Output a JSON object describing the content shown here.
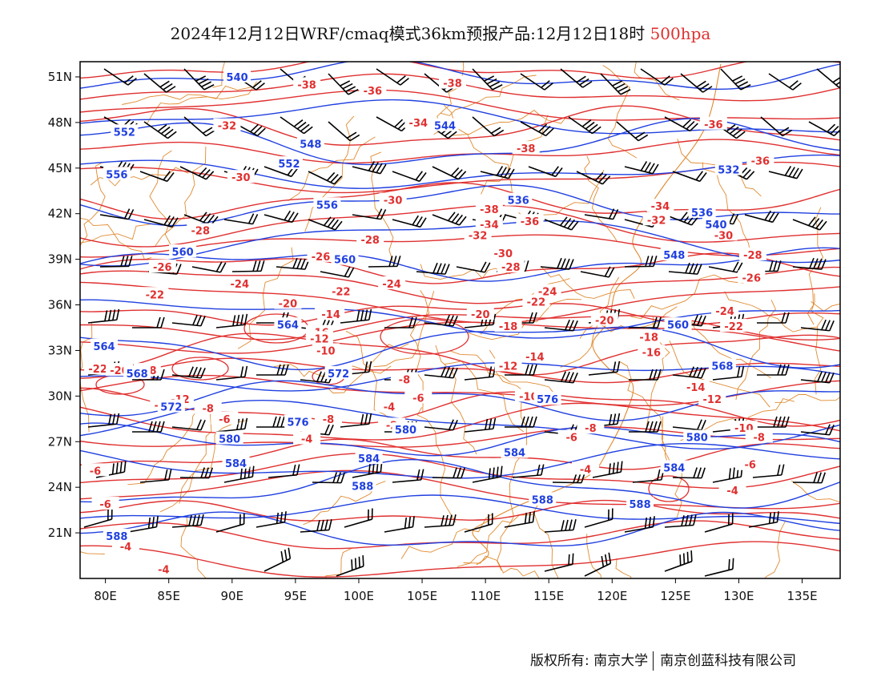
{
  "title": {
    "main": "2024年12月12日WRF/cmaq模式36km预报产品:12月12日18时",
    "level": "500hpa",
    "level_color": "#e03030"
  },
  "map": {
    "extent": {
      "lon": [
        78,
        138
      ],
      "lat": [
        18,
        52
      ]
    },
    "lon_ticks": [
      "80E",
      "85E",
      "90E",
      "95E",
      "100E",
      "105E",
      "110E",
      "115E",
      "120E",
      "125E",
      "130E",
      "135E"
    ],
    "lat_ticks": [
      "51N",
      "48N",
      "45N",
      "42N",
      "39N",
      "36N",
      "33N",
      "30N",
      "27N",
      "24N",
      "21N"
    ],
    "colors": {
      "height_contour": "#2040e0",
      "temperature_contour": "#e03030",
      "borders": "#e08a30",
      "wind_barb": "#000000"
    },
    "height_labels": [
      {
        "text": "540",
        "lon": 90.4,
        "lat": 51.0
      },
      {
        "text": "552",
        "lon": 81.5,
        "lat": 47.4
      },
      {
        "text": "548",
        "lon": 96.2,
        "lat": 46.6
      },
      {
        "text": "544",
        "lon": 106.8,
        "lat": 47.8
      },
      {
        "text": "556",
        "lon": 80.9,
        "lat": 44.6
      },
      {
        "text": "552",
        "lon": 94.5,
        "lat": 45.3
      },
      {
        "text": "536",
        "lon": 112.6,
        "lat": 42.9
      },
      {
        "text": "532",
        "lon": 129.2,
        "lat": 44.9
      },
      {
        "text": "536",
        "lon": 127.1,
        "lat": 42.1
      },
      {
        "text": "540",
        "lon": 128.2,
        "lat": 41.3
      },
      {
        "text": "556",
        "lon": 97.5,
        "lat": 42.6
      },
      {
        "text": "560",
        "lon": 86.1,
        "lat": 39.5
      },
      {
        "text": "560",
        "lon": 98.9,
        "lat": 39.0
      },
      {
        "text": "548",
        "lon": 124.9,
        "lat": 39.3
      },
      {
        "text": "564",
        "lon": 94.4,
        "lat": 34.7
      },
      {
        "text": "564",
        "lon": 79.9,
        "lat": 33.3
      },
      {
        "text": "560",
        "lon": 125.2,
        "lat": 34.7
      },
      {
        "text": "568",
        "lon": 128.7,
        "lat": 32.0
      },
      {
        "text": "568",
        "lon": 82.5,
        "lat": 31.5
      },
      {
        "text": "572",
        "lon": 98.4,
        "lat": 31.5
      },
      {
        "text": "572",
        "lon": 85.2,
        "lat": 29.3
      },
      {
        "text": "576",
        "lon": 95.2,
        "lat": 28.3
      },
      {
        "text": "576",
        "lon": 114.9,
        "lat": 29.8
      },
      {
        "text": "580",
        "lon": 89.8,
        "lat": 27.2
      },
      {
        "text": "580",
        "lon": 103.7,
        "lat": 27.8
      },
      {
        "text": "580",
        "lon": 126.7,
        "lat": 27.3
      },
      {
        "text": "584",
        "lon": 90.3,
        "lat": 25.6
      },
      {
        "text": "584",
        "lon": 100.8,
        "lat": 25.9
      },
      {
        "text": "584",
        "lon": 112.3,
        "lat": 26.3
      },
      {
        "text": "584",
        "lon": 124.9,
        "lat": 25.3
      },
      {
        "text": "588",
        "lon": 100.3,
        "lat": 24.1
      },
      {
        "text": "588",
        "lon": 114.5,
        "lat": 23.2
      },
      {
        "text": "588",
        "lon": 122.2,
        "lat": 22.9
      },
      {
        "text": "588",
        "lon": 80.9,
        "lat": 20.8
      }
    ],
    "temperature_labels": [
      {
        "text": "-38",
        "lon": 95.9,
        "lat": 50.5
      },
      {
        "text": "-36",
        "lon": 101.1,
        "lat": 50.1
      },
      {
        "text": "-38",
        "lon": 107.4,
        "lat": 50.6
      },
      {
        "text": "-32",
        "lon": 89.6,
        "lat": 47.8
      },
      {
        "text": "-34",
        "lon": 104.7,
        "lat": 48.0
      },
      {
        "text": "-36",
        "lon": 128.0,
        "lat": 47.9
      },
      {
        "text": "-38",
        "lon": 113.2,
        "lat": 46.3
      },
      {
        "text": "-36",
        "lon": 131.7,
        "lat": 45.5
      },
      {
        "text": "-30",
        "lon": 90.7,
        "lat": 44.4
      },
      {
        "text": "-30",
        "lon": 102.7,
        "lat": 42.9
      },
      {
        "text": "-38",
        "lon": 110.3,
        "lat": 42.3
      },
      {
        "text": "-36",
        "lon": 113.5,
        "lat": 41.5
      },
      {
        "text": "-34",
        "lon": 123.8,
        "lat": 42.5
      },
      {
        "text": "-32",
        "lon": 123.5,
        "lat": 41.6
      },
      {
        "text": "-34",
        "lon": 110.3,
        "lat": 41.3
      },
      {
        "text": "-32",
        "lon": 109.4,
        "lat": 40.6
      },
      {
        "text": "-30",
        "lon": 128.8,
        "lat": 40.6
      },
      {
        "text": "-28",
        "lon": 87.5,
        "lat": 40.9
      },
      {
        "text": "-28",
        "lon": 100.9,
        "lat": 40.3
      },
      {
        "text": "-30",
        "lon": 111.4,
        "lat": 39.4
      },
      {
        "text": "-28",
        "lon": 131.1,
        "lat": 39.3
      },
      {
        "text": "-26",
        "lon": 84.5,
        "lat": 38.5
      },
      {
        "text": "-26",
        "lon": 97.0,
        "lat": 39.2
      },
      {
        "text": "-28",
        "lon": 112.0,
        "lat": 38.5
      },
      {
        "text": "-26",
        "lon": 131.0,
        "lat": 37.8
      },
      {
        "text": "-24",
        "lon": 90.6,
        "lat": 37.4
      },
      {
        "text": "-22",
        "lon": 83.9,
        "lat": 36.7
      },
      {
        "text": "-22",
        "lon": 98.6,
        "lat": 36.9
      },
      {
        "text": "-24",
        "lon": 102.6,
        "lat": 37.4
      },
      {
        "text": "-22",
        "lon": 114.0,
        "lat": 36.2
      },
      {
        "text": "-24",
        "lon": 114.9,
        "lat": 36.9
      },
      {
        "text": "-20",
        "lon": 94.4,
        "lat": 36.1
      },
      {
        "text": "-20",
        "lon": 109.6,
        "lat": 35.4
      },
      {
        "text": "-18",
        "lon": 97.6,
        "lat": 35.5
      },
      {
        "text": "-24",
        "lon": 128.9,
        "lat": 35.6
      },
      {
        "text": "-20",
        "lon": 119.4,
        "lat": 35.0
      },
      {
        "text": "-22",
        "lon": 129.6,
        "lat": 34.6
      },
      {
        "text": "-18",
        "lon": 111.8,
        "lat": 34.6
      },
      {
        "text": "-16",
        "lon": 96.9,
        "lat": 34.2
      },
      {
        "text": "-14",
        "lon": 97.8,
        "lat": 35.4
      },
      {
        "text": "-12",
        "lon": 96.9,
        "lat": 33.8
      },
      {
        "text": "-10",
        "lon": 97.4,
        "lat": 33.0
      },
      {
        "text": "-18",
        "lon": 122.9,
        "lat": 33.9
      },
      {
        "text": "-16",
        "lon": 123.1,
        "lat": 32.9
      },
      {
        "text": "-14",
        "lon": 113.9,
        "lat": 32.6
      },
      {
        "text": "-12",
        "lon": 111.8,
        "lat": 32.0
      },
      {
        "text": "-22",
        "lon": 79.4,
        "lat": 31.8
      },
      {
        "text": "-20",
        "lon": 81.1,
        "lat": 31.7
      },
      {
        "text": "-18",
        "lon": 83.3,
        "lat": 31.7
      },
      {
        "text": "-8",
        "lon": 103.6,
        "lat": 31.1
      },
      {
        "text": "-14",
        "lon": 126.6,
        "lat": 30.6
      },
      {
        "text": "-6",
        "lon": 104.7,
        "lat": 29.9
      },
      {
        "text": "-10",
        "lon": 113.4,
        "lat": 30.0
      },
      {
        "text": "-12",
        "lon": 127.9,
        "lat": 29.8
      },
      {
        "text": "-14",
        "lon": 84.6,
        "lat": 29.4
      },
      {
        "text": "-12",
        "lon": 85.9,
        "lat": 29.8
      },
      {
        "text": "-8",
        "lon": 88.1,
        "lat": 29.2
      },
      {
        "text": "-4",
        "lon": 102.4,
        "lat": 29.3
      },
      {
        "text": "-6",
        "lon": 89.4,
        "lat": 28.5
      },
      {
        "text": "-8",
        "lon": 97.6,
        "lat": 28.5
      },
      {
        "text": "-2",
        "lon": 102.6,
        "lat": 28.1
      },
      {
        "text": "-8",
        "lon": 118.3,
        "lat": 27.9
      },
      {
        "text": "-10",
        "lon": 130.4,
        "lat": 27.9
      },
      {
        "text": "-8",
        "lon": 131.6,
        "lat": 27.3
      },
      {
        "text": "-4",
        "lon": 95.9,
        "lat": 27.2
      },
      {
        "text": "-6",
        "lon": 116.8,
        "lat": 27.3
      },
      {
        "text": "-6",
        "lon": 79.2,
        "lat": 25.1
      },
      {
        "text": "-6",
        "lon": 130.9,
        "lat": 25.5
      },
      {
        "text": "-4",
        "lon": 117.9,
        "lat": 25.2
      },
      {
        "text": "-4",
        "lon": 129.5,
        "lat": 23.8
      },
      {
        "text": "-6",
        "lon": 80.0,
        "lat": 22.9
      },
      {
        "text": "-4",
        "lon": 81.6,
        "lat": 20.1
      },
      {
        "text": "-4",
        "lon": 84.6,
        "lat": 18.6
      }
    ]
  },
  "copyright": {
    "left": "版权所有: 南京大学",
    "right": "南京创蓝科技有限公司"
  }
}
